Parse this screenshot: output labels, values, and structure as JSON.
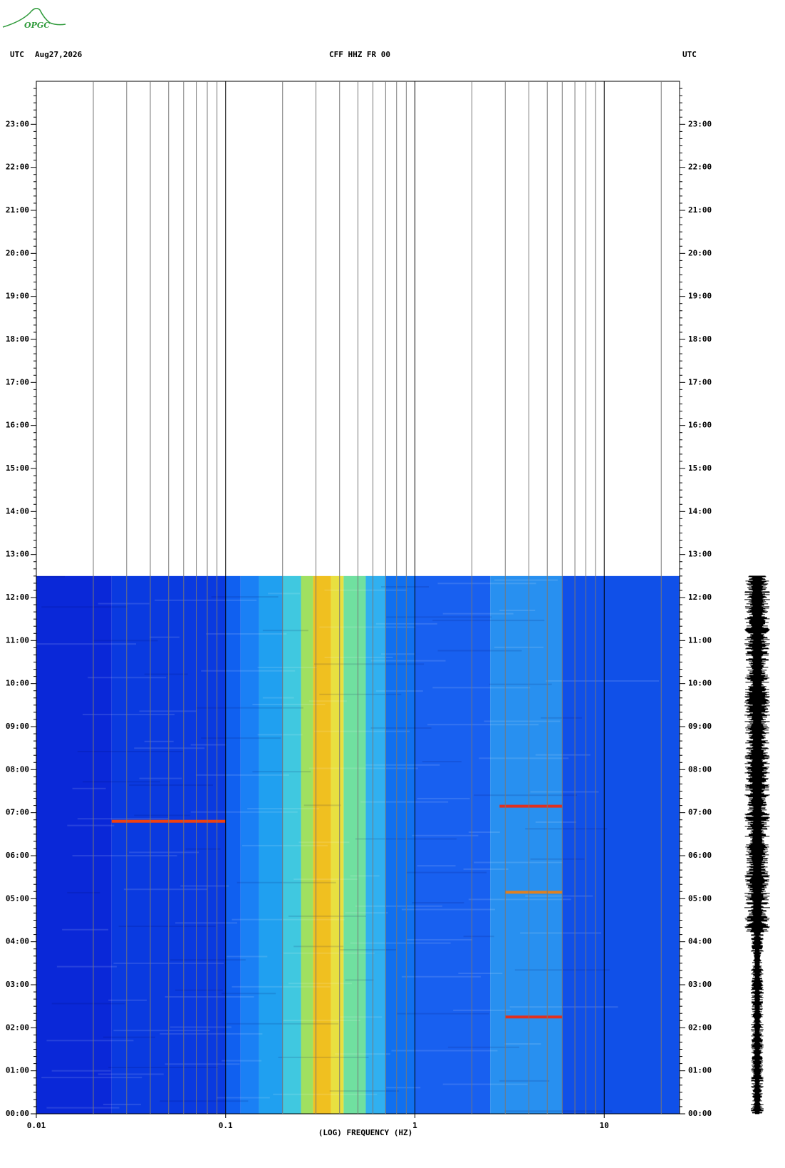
{
  "logo": "OPGC",
  "chart_data": {
    "type": "spectrogram",
    "title": "CFF HHZ FR 00",
    "date": "Aug27,2026",
    "timezone_left": "UTC",
    "timezone_right": "UTC",
    "xlabel": "(LOG) FREQUENCY (HZ)",
    "xscale": "log",
    "xlim": [
      0.01,
      25
    ],
    "xticks": [
      {
        "value": 0.01,
        "label": "0.01"
      },
      {
        "value": 0.1,
        "label": "0.1"
      },
      1,
      10
    ],
    "xminor": [
      0.02,
      0.03,
      0.04,
      0.05,
      0.06,
      0.07,
      0.08,
      0.09,
      0.2,
      0.3,
      0.4,
      0.5,
      0.6,
      0.7,
      0.8,
      0.9,
      2,
      3,
      4,
      5,
      6,
      7,
      8,
      9,
      20
    ],
    "ylim": [
      0,
      24
    ],
    "yticks": [
      {
        "value": 0,
        "label": "00:00"
      },
      {
        "value": 1,
        "label": "01:00"
      },
      {
        "value": 2,
        "label": "02:00"
      },
      {
        "value": 3,
        "label": "03:00"
      },
      {
        "value": 4,
        "label": "04:00"
      },
      {
        "value": 5,
        "label": "05:00"
      },
      {
        "value": 6,
        "label": "06:00"
      },
      {
        "value": 7,
        "label": "07:00"
      },
      {
        "value": 8,
        "label": "08:00"
      },
      {
        "value": 9,
        "label": "09:00"
      },
      {
        "value": 10,
        "label": "10:00"
      },
      {
        "value": 11,
        "label": "11:00"
      },
      {
        "value": 12,
        "label": "12:00"
      },
      {
        "value": 13,
        "label": "13:00"
      },
      {
        "value": 14,
        "label": "14:00"
      },
      {
        "value": 15,
        "label": "15:00"
      },
      {
        "value": 16,
        "label": "16:00"
      },
      {
        "value": 17,
        "label": "17:00"
      },
      {
        "value": 18,
        "label": "18:00"
      },
      {
        "value": 19,
        "label": "19:00"
      },
      {
        "value": 20,
        "label": "20:00"
      },
      {
        "value": 21,
        "label": "21:00"
      },
      {
        "value": 22,
        "label": "22:00"
      },
      {
        "value": 23,
        "label": "23:00"
      }
    ],
    "data_until": 12.5,
    "band_edges": [
      0.01,
      0.025,
      0.1,
      0.12,
      0.15,
      0.2,
      0.25,
      0.29,
      0.36,
      0.42,
      0.55,
      0.7,
      1,
      2.5,
      6,
      25
    ],
    "band_colors": [
      "#0a28d8",
      "#0a3ae0",
      "#1060f0",
      "#1a80f5",
      "#20a0f0",
      "#40c8e0",
      "#a0e060",
      "#f0c020",
      "#e8e040",
      "#70e0a0",
      "#30b0f0",
      "#1070f0",
      "#1860f0",
      "#2890f0",
      "#1050e8"
    ],
    "events": [
      {
        "time": 6.8,
        "freq": [
          0.025,
          0.1
        ],
        "color": "#f04010"
      },
      {
        "time": 7.15,
        "freq": [
          2.8,
          6
        ],
        "color": "#e03020"
      },
      {
        "time": 5.15,
        "freq": [
          3,
          6
        ],
        "color": "#e08020"
      },
      {
        "time": 2.25,
        "freq": [
          3,
          6
        ],
        "color": "#e03020"
      }
    ]
  }
}
